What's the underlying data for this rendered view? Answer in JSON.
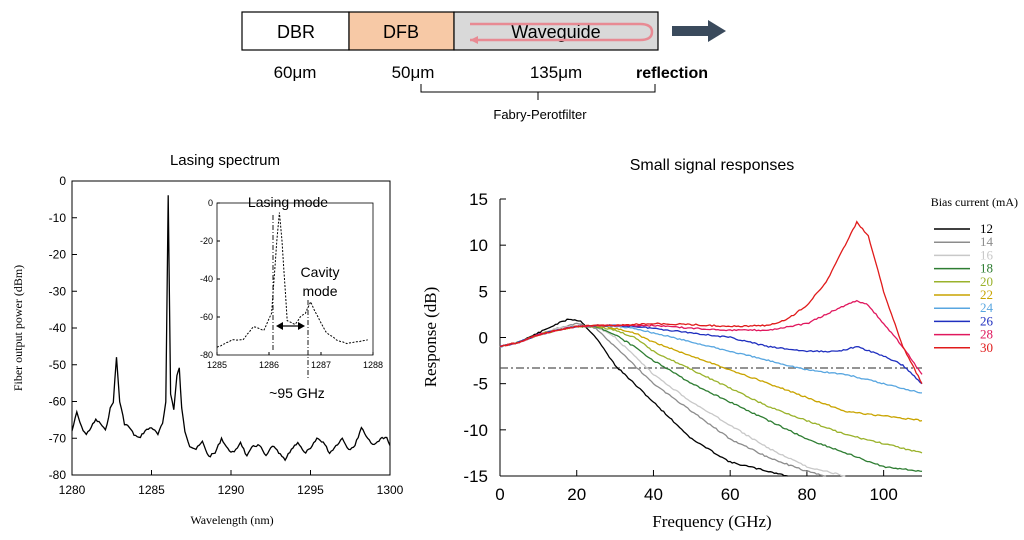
{
  "diagram": {
    "sections": [
      {
        "label": "DBR",
        "color": "#ffffff"
      },
      {
        "label": "DFB",
        "color": "#f7c9a6"
      },
      {
        "label": "Waveguide",
        "color": "#d9d9d9"
      }
    ],
    "lengths": [
      "60μm",
      "50μm",
      "135μm"
    ],
    "reflection_label": "reflection",
    "filter_label": "Fabry-Perotfilter",
    "reflection_arrow_color": "#e88a93",
    "output_arrow_color": "#3a4a5c"
  },
  "chart_data": [
    {
      "type": "line",
      "title": "Lasing spectrum",
      "xlabel": "Wavelength (nm)",
      "ylabel": "Fiber output power (dBm)",
      "xlim": [
        1280,
        1300
      ],
      "ylim": [
        -80,
        0
      ],
      "xticks": [
        "1280",
        "1285",
        "1290",
        "1295",
        "1300"
      ],
      "yticks": [
        "0",
        "-10",
        "-20",
        "-30",
        "-40",
        "-50",
        "-60",
        "-70",
        "-80"
      ],
      "series": [
        {
          "x": [
            1280,
            1280.3,
            1280.6,
            1280.9,
            1281.2,
            1281.5,
            1281.8,
            1282.1,
            1282.4,
            1282.6,
            1282.8,
            1283.0,
            1283.3,
            1283.6,
            1283.9,
            1284.2,
            1284.6,
            1285.0,
            1285.4,
            1285.7,
            1285.9,
            1286.05,
            1286.2,
            1286.4,
            1286.6,
            1286.75,
            1286.9,
            1287.1,
            1287.4,
            1287.8,
            1288.2,
            1288.6,
            1289.0,
            1289.4,
            1289.8,
            1290.2,
            1290.6,
            1291.0,
            1291.4,
            1291.8,
            1292.2,
            1292.6,
            1293.0,
            1293.4,
            1293.8,
            1294.2,
            1294.6,
            1295.0,
            1295.4,
            1295.8,
            1296.2,
            1296.6,
            1297.0,
            1297.4,
            1297.8,
            1298.2,
            1298.6,
            1299.0,
            1299.4,
            1299.8,
            1300
          ],
          "y": [
            -68,
            -63,
            -67,
            -69,
            -67,
            -65,
            -66,
            -68,
            -62,
            -60,
            -48,
            -60,
            -66,
            -67,
            -69,
            -70,
            -68,
            -67,
            -69,
            -66,
            -60,
            -4,
            -58,
            -62,
            -53,
            -51,
            -62,
            -68,
            -72,
            -73,
            -71,
            -75,
            -74,
            -70,
            -73,
            -74,
            -71,
            -75,
            -72,
            -72,
            -75,
            -72,
            -74,
            -76,
            -73,
            -71,
            -74,
            -73,
            -70,
            -71,
            -74,
            -72,
            -70,
            -73,
            -72,
            -67,
            -70,
            -72,
            -70,
            -70,
            -72
          ]
        }
      ],
      "inset": {
        "xlim": [
          1285,
          1288
        ],
        "ylim": [
          -80,
          0
        ],
        "xticks": [
          "1285",
          "1286",
          "1287",
          "1288"
        ],
        "yticks": [
          "0",
          "-20",
          "-40",
          "-60",
          "-80"
        ],
        "annotations": [
          "Lasing mode",
          "Cavity mode",
          "~95 GHz"
        ],
        "series": {
          "x": [
            1285.0,
            1285.3,
            1285.5,
            1285.7,
            1285.9,
            1286.05,
            1286.15,
            1286.2,
            1286.25,
            1286.35,
            1286.5,
            1286.6,
            1286.7,
            1286.8,
            1286.9,
            1287.1,
            1287.3,
            1287.5,
            1287.7,
            1287.9
          ],
          "y": [
            -76,
            -72,
            -72,
            -65,
            -67,
            -58,
            -20,
            -5,
            -20,
            -62,
            -64,
            -60,
            -58,
            -52,
            -58,
            -68,
            -72,
            -74,
            -73,
            -72
          ]
        }
      }
    },
    {
      "type": "line",
      "title": "Small signal responses",
      "xlabel": "Frequency (GHz)",
      "ylabel": "Response (dB)",
      "xlim": [
        0,
        110
      ],
      "ylim": [
        -15,
        15
      ],
      "xticks": [
        "0",
        "20",
        "40",
        "60",
        "80",
        "100"
      ],
      "yticks": [
        "15",
        "10",
        "5",
        "0",
        "-5",
        "-10",
        "-15"
      ],
      "legend_title": "Bias current (mA)",
      "legend_position": "top-right",
      "reference_line_y": -3.3,
      "series": [
        {
          "name": "12",
          "color": "#000000",
          "x": [
            0,
            5,
            10,
            15,
            18,
            21,
            25,
            30,
            35,
            40,
            50,
            60,
            70,
            75
          ],
          "y": [
            -1,
            -0.5,
            0.5,
            1.5,
            2,
            1.8,
            0,
            -3,
            -5,
            -7,
            -11,
            -13.5,
            -14.5,
            -15
          ]
        },
        {
          "name": "14",
          "color": "#8c8c8c",
          "x": [
            0,
            5,
            10,
            15,
            20,
            25,
            30,
            35,
            40,
            50,
            60,
            70,
            80,
            85
          ],
          "y": [
            -1,
            -0.5,
            0.3,
            1,
            1.5,
            1,
            -1,
            -3,
            -5,
            -8,
            -11,
            -13,
            -14.5,
            -15
          ]
        },
        {
          "name": "16",
          "color": "#c8c8c8",
          "x": [
            0,
            5,
            10,
            15,
            20,
            25,
            30,
            35,
            40,
            50,
            60,
            70,
            80,
            90
          ],
          "y": [
            -1,
            -0.5,
            0.3,
            1,
            1.3,
            1.2,
            0,
            -2,
            -4,
            -7,
            -9.5,
            -12,
            -14,
            -15
          ]
        },
        {
          "name": "18",
          "color": "#2e7d32",
          "x": [
            0,
            5,
            10,
            15,
            20,
            25,
            30,
            35,
            40,
            50,
            60,
            70,
            80,
            90,
            100,
            110
          ],
          "y": [
            -1,
            -0.5,
            0.3,
            0.8,
            1.2,
            1.2,
            0.3,
            -1,
            -2.5,
            -5,
            -7,
            -9,
            -11,
            -12.5,
            -14,
            -14.5
          ]
        },
        {
          "name": "20",
          "color": "#9ab22b",
          "x": [
            0,
            5,
            10,
            15,
            20,
            25,
            30,
            35,
            40,
            50,
            60,
            70,
            80,
            90,
            100,
            110
          ],
          "y": [
            -1,
            -0.5,
            0.3,
            0.8,
            1.2,
            1.2,
            0.8,
            0,
            -1.5,
            -3.5,
            -5.5,
            -7.5,
            -9,
            -10.5,
            -11.5,
            -12.5
          ]
        },
        {
          "name": "22",
          "color": "#c9a400",
          "x": [
            0,
            5,
            10,
            15,
            20,
            25,
            30,
            35,
            40,
            50,
            60,
            70,
            80,
            90,
            100,
            110
          ],
          "y": [
            -1,
            -0.5,
            0.3,
            0.8,
            1.2,
            1.3,
            1,
            0.5,
            -0.5,
            -2,
            -3.5,
            -5,
            -6.5,
            -8,
            -8.5,
            -9
          ]
        },
        {
          "name": "24",
          "color": "#58a6e0",
          "x": [
            0,
            5,
            10,
            15,
            20,
            25,
            30,
            35,
            40,
            50,
            60,
            70,
            80,
            90,
            100,
            110
          ],
          "y": [
            -1,
            -0.5,
            0.3,
            0.8,
            1.2,
            1.3,
            1.2,
            1,
            0.5,
            -0.5,
            -1.5,
            -2.5,
            -3.5,
            -4,
            -5,
            -6
          ]
        },
        {
          "name": "26",
          "color": "#1f2fbf",
          "x": [
            0,
            5,
            10,
            15,
            20,
            25,
            30,
            35,
            40,
            50,
            60,
            70,
            80,
            88,
            93,
            100,
            105,
            110
          ],
          "y": [
            -1,
            -0.5,
            0.3,
            0.8,
            1.2,
            1.3,
            1.3,
            1.2,
            1,
            0.5,
            0,
            -1,
            -1.5,
            -1.5,
            -1,
            -2,
            -3,
            -5
          ]
        },
        {
          "name": "28",
          "color": "#e0185e",
          "x": [
            0,
            5,
            10,
            15,
            20,
            25,
            30,
            35,
            40,
            50,
            60,
            70,
            80,
            85,
            90,
            93,
            96,
            100,
            105,
            110
          ],
          "y": [
            -1,
            -0.5,
            0.3,
            0.8,
            1.2,
            1.3,
            1.3,
            1.3,
            1.3,
            1,
            0.8,
            0.8,
            1.5,
            2.5,
            3.5,
            4,
            3.5,
            1.5,
            -1,
            -4
          ]
        },
        {
          "name": "30",
          "color": "#e01b1b",
          "x": [
            0,
            5,
            10,
            15,
            20,
            25,
            30,
            35,
            40,
            50,
            60,
            70,
            75,
            80,
            85,
            90,
            93,
            96,
            100,
            105,
            110
          ],
          "y": [
            -1,
            -0.5,
            0.3,
            0.8,
            1.2,
            1.3,
            1.3,
            1.4,
            1.5,
            1.4,
            1.2,
            1.3,
            2,
            3.5,
            6,
            10,
            12.5,
            11,
            5,
            -1,
            -5
          ]
        }
      ]
    }
  ]
}
